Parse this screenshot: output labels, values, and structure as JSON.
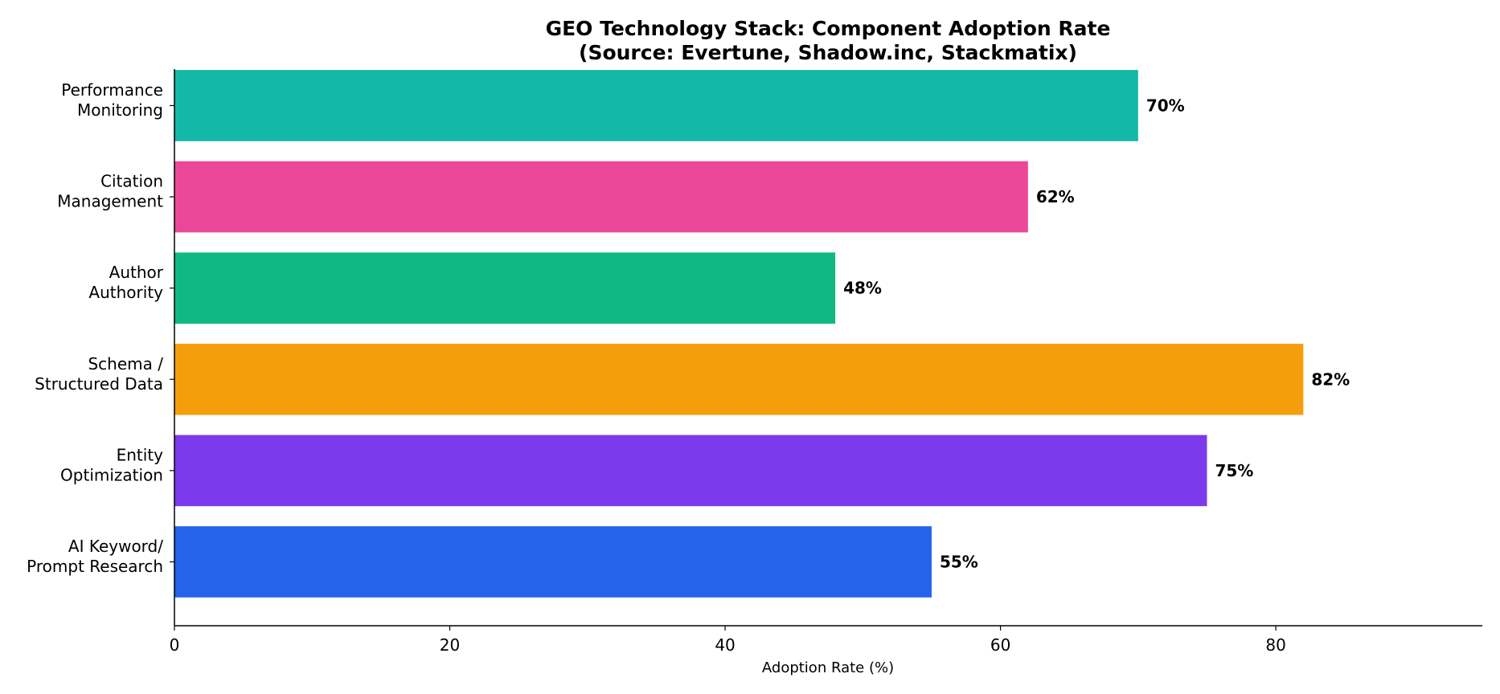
{
  "chart_data": {
    "type": "bar",
    "orientation": "horizontal",
    "title": "GEO Technology Stack: Component Adoption Rate",
    "subtitle": "(Source: Evertune, Shadow.inc, Stackmatix)",
    "xlabel": "Adoption Rate (%)",
    "ylabel": "",
    "xlim": [
      0,
      95
    ],
    "xticks": [
      0,
      20,
      40,
      60,
      80
    ],
    "grid": false,
    "categories": [
      [
        "AI Keyword/",
        "Prompt Research"
      ],
      [
        "Entity",
        "Optimization"
      ],
      [
        "Schema /",
        "Structured Data"
      ],
      [
        "Author",
        "Authority"
      ],
      [
        "Citation",
        "Management"
      ],
      [
        "Performance",
        "Monitoring"
      ]
    ],
    "values": [
      55,
      75,
      82,
      48,
      62,
      70
    ],
    "value_labels": [
      "55%",
      "75%",
      "82%",
      "48%",
      "62%",
      "70%"
    ],
    "colors": [
      "#2563eb",
      "#7c3aed",
      "#f59e0b",
      "#10b981",
      "#ec4899",
      "#14b8a6"
    ]
  }
}
